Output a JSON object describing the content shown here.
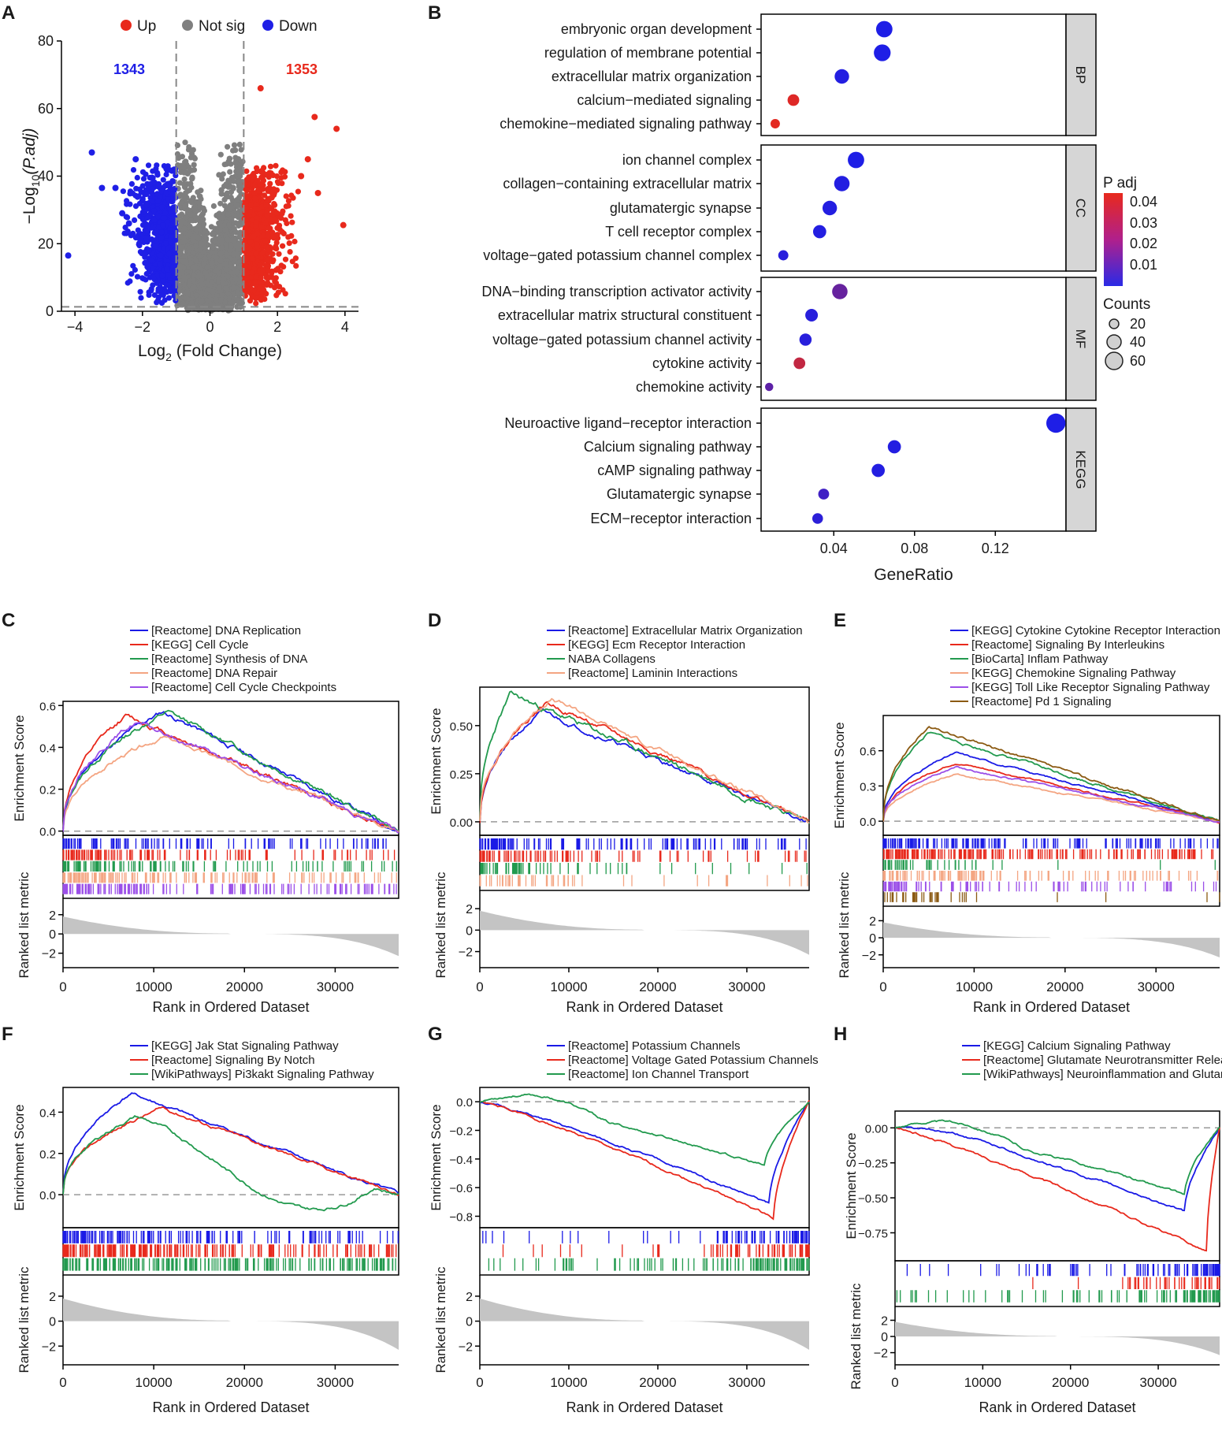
{
  "figure": {
    "panel_labels": [
      "A",
      "B",
      "C",
      "D",
      "E",
      "F",
      "G",
      "H"
    ],
    "colors": {
      "up": "#e8291c",
      "down": "#1f1fe6",
      "notsig": "#7f7f7f",
      "grid_gray": "#d3d3d3",
      "gsea": [
        "#1a1ae6",
        "#e8291c",
        "#229a4e",
        "#f4a582",
        "#9b4fe8",
        "#8b5a12"
      ]
    }
  },
  "chart_data": [
    {
      "id": "A",
      "type": "scatter",
      "title": "",
      "xlabel_main": "Log",
      "xlabel_sub": "2",
      "xlabel_rest": " (Fold Change)",
      "ylabel_main": "−Log",
      "ylabel_sub": "10",
      "ylabel_rest": "(P.adj)",
      "xlim": [
        -4.4,
        4.4
      ],
      "ylim": [
        0,
        80
      ],
      "xticks": [
        -4,
        -2,
        0,
        2,
        4
      ],
      "yticks": [
        0,
        20,
        40,
        60,
        80
      ],
      "fc_threshold": [
        -1,
        1
      ],
      "p_threshold_y": 1.3,
      "legend": [
        "Up",
        "Not sig",
        "Down"
      ],
      "counts": {
        "down": "1343",
        "up": "1353"
      },
      "highlight_points": [
        {
          "x": -4.2,
          "y": 16.5,
          "group": "down"
        },
        {
          "x": -3.5,
          "y": 47,
          "group": "down"
        },
        {
          "x": -3.2,
          "y": 36.5,
          "group": "down"
        },
        {
          "x": -2.8,
          "y": 36.5,
          "group": "down"
        },
        {
          "x": -2.6,
          "y": 29,
          "group": "down"
        },
        {
          "x": -2.4,
          "y": 26,
          "group": "down"
        },
        {
          "x": -2.2,
          "y": 45,
          "group": "down"
        },
        {
          "x": 1.5,
          "y": 66,
          "group": "up"
        },
        {
          "x": 3.1,
          "y": 57.5,
          "group": "up"
        },
        {
          "x": 3.75,
          "y": 54,
          "group": "up"
        },
        {
          "x": 3.95,
          "y": 25.5,
          "group": "up"
        },
        {
          "x": 2.9,
          "y": 45,
          "group": "up"
        },
        {
          "x": 2.7,
          "y": 40,
          "group": "up"
        },
        {
          "x": 3.2,
          "y": 35,
          "group": "up"
        }
      ]
    },
    {
      "id": "B",
      "type": "scatter",
      "xlabel": "GeneRatio",
      "xlim": [
        0.004,
        0.155
      ],
      "xticks": [
        0.04,
        0.08,
        0.12
      ],
      "xtick_labels": [
        "0.04",
        "0.08",
        "0.12"
      ],
      "legend_color_title": "P adj",
      "legend_color_ticks": [
        "0.04",
        "0.03",
        "0.02",
        "0.01"
      ],
      "legend_size_title": "Counts",
      "legend_size_ticks": [
        "20",
        "40",
        "60"
      ],
      "facets": [
        {
          "name": "BP",
          "terms": [
            {
              "term": "embryonic organ development",
              "ratio": 0.065,
              "count": 55,
              "padj": 0.002
            },
            {
              "term": "regulation of membrane potential",
              "ratio": 0.064,
              "count": 57,
              "padj": 0.002
            },
            {
              "term": "extracellular matrix organization",
              "ratio": 0.044,
              "count": 45,
              "padj": 0.003
            },
            {
              "term": "calcium−mediated signaling",
              "ratio": 0.02,
              "count": 30,
              "padj": 0.042
            },
            {
              "term": "chemokine−mediated signaling pathway",
              "ratio": 0.011,
              "count": 18,
              "padj": 0.043
            }
          ]
        },
        {
          "name": "CC",
          "terms": [
            {
              "term": "ion channel complex",
              "ratio": 0.051,
              "count": 55,
              "padj": 0.002
            },
            {
              "term": "collagen−containing extracellular matrix",
              "ratio": 0.044,
              "count": 50,
              "padj": 0.003
            },
            {
              "term": "glutamatergic synapse",
              "ratio": 0.038,
              "count": 45,
              "padj": 0.003
            },
            {
              "term": "T cell receptor complex",
              "ratio": 0.033,
              "count": 38,
              "padj": 0.003
            },
            {
              "term": "voltage−gated potassium channel complex",
              "ratio": 0.015,
              "count": 22,
              "padj": 0.004
            }
          ]
        },
        {
          "name": "MF",
          "terms": [
            {
              "term": "DNA−binding transcription activator activity",
              "ratio": 0.043,
              "count": 50,
              "padj": 0.017
            },
            {
              "term": "extracellular matrix structural constituent",
              "ratio": 0.029,
              "count": 35,
              "padj": 0.004
            },
            {
              "term": "voltage−gated potassium channel activity",
              "ratio": 0.026,
              "count": 33,
              "padj": 0.004
            },
            {
              "term": "cytokine activity",
              "ratio": 0.023,
              "count": 30,
              "padj": 0.036
            },
            {
              "term": "chemokine activity",
              "ratio": 0.008,
              "count": 12,
              "padj": 0.015
            }
          ]
        },
        {
          "name": "KEGG",
          "terms": [
            {
              "term": "Neuroactive ligand−receptor interaction",
              "ratio": 0.15,
              "count": 70,
              "padj": 0.002
            },
            {
              "term": "Calcium signaling pathway",
              "ratio": 0.07,
              "count": 38,
              "padj": 0.003
            },
            {
              "term": "cAMP signaling pathway",
              "ratio": 0.062,
              "count": 38,
              "padj": 0.003
            },
            {
              "term": "Glutamatergic synapse",
              "ratio": 0.035,
              "count": 26,
              "padj": 0.009
            },
            {
              "term": "ECM−receptor interaction",
              "ratio": 0.032,
              "count": 25,
              "padj": 0.005
            }
          ]
        }
      ]
    },
    {
      "id": "C",
      "type": "line",
      "ylabel_top": "Enrichment Score",
      "ylabel_bottom": "Ranked list metric",
      "xlabel": "Rank in Ordered Dataset",
      "xlim": [
        0,
        37000
      ],
      "xticks": [
        0,
        10000,
        20000,
        30000
      ],
      "ylim": [
        -0.02,
        0.62
      ],
      "yticks": [
        0.0,
        0.2,
        0.4,
        0.6
      ],
      "ytick_labels": [
        "0.0",
        "0.2",
        "0.4",
        "0.6"
      ],
      "metric_ticks": [
        "2",
        "0",
        "−2"
      ],
      "series": [
        {
          "name": "[Reactome] DNA Replication",
          "color": 0,
          "peak": 0.57,
          "peakRank": 11000,
          "shape": "pos",
          "jag": 0.03,
          "seed": 11,
          "density": 0.6
        },
        {
          "name": "[KEGG] Cell Cycle",
          "color": 1,
          "peak": 0.55,
          "peakRank": 7000,
          "shape": "pos",
          "jag": 0.03,
          "seed": 12,
          "density": 0.6
        },
        {
          "name": "[Reactome] Synthesis of DNA",
          "color": 2,
          "peak": 0.57,
          "peakRank": 11500,
          "shape": "pos",
          "jag": 0.03,
          "seed": 13,
          "density": 0.55
        },
        {
          "name": "[Reactome] DNA Repair",
          "color": 3,
          "peak": 0.45,
          "peakRank": 11000,
          "shape": "pos",
          "jag": 0.025,
          "seed": 14,
          "density": 0.75
        },
        {
          "name": "[Reactome] Cell Cycle Checkpoints",
          "color": 4,
          "peak": 0.52,
          "peakRank": 8000,
          "shape": "pos",
          "jag": 0.03,
          "seed": 15,
          "density": 0.75
        }
      ]
    },
    {
      "id": "D",
      "type": "line",
      "ylabel_top": "Enrichment Score",
      "ylabel_bottom": "Ranked list metric",
      "xlabel": "Rank in Ordered Dataset",
      "xlim": [
        0,
        37000
      ],
      "xticks": [
        0,
        10000,
        20000,
        30000
      ],
      "ylim": [
        -0.07,
        0.7
      ],
      "yticks": [
        0.0,
        0.25,
        0.5
      ],
      "ytick_labels": [
        "0.00",
        "0.25",
        "0.50"
      ],
      "metric_ticks": [
        "2",
        "0",
        "−2"
      ],
      "series": [
        {
          "name": "[Reactome] Extracellular Matrix Organization",
          "color": 0,
          "peak": 0.57,
          "peakRank": 7000,
          "shape": "pos",
          "jag": 0.03,
          "seed": 21,
          "density": 0.7
        },
        {
          "name": "[KEGG] Ecm Receptor Interaction",
          "color": 1,
          "peak": 0.62,
          "peakRank": 7500,
          "shape": "pos",
          "jag": 0.03,
          "seed": 22,
          "density": 0.5
        },
        {
          "name": "NABA Collagens",
          "color": 2,
          "peak": 0.66,
          "peakRank": 3500,
          "shape": "pos",
          "jag": 0.04,
          "seed": 23,
          "density": 0.3
        },
        {
          "name": "[Reactome] Laminin Interactions",
          "color": 3,
          "peak": 0.64,
          "peakRank": 8000,
          "shape": "pos",
          "jag": 0.03,
          "seed": 24,
          "density": 0.2
        }
      ]
    },
    {
      "id": "E",
      "type": "line",
      "ylabel_top": "Enrichment Score",
      "ylabel_bottom": "Ranked list metric",
      "xlabel": "Rank in Ordered Dataset",
      "xlim": [
        0,
        37000
      ],
      "xticks": [
        0,
        10000,
        20000,
        30000
      ],
      "ylim": [
        -0.12,
        0.9
      ],
      "yticks": [
        0.0,
        0.3,
        0.6
      ],
      "ytick_labels": [
        "0.0",
        "0.3",
        "0.6"
      ],
      "metric_ticks": [
        "2",
        "0",
        "−2"
      ],
      "series": [
        {
          "name": "[KEGG] Cytokine Cytokine Receptor Interaction",
          "color": 0,
          "peak": 0.58,
          "peakRank": 8000,
          "shape": "pos",
          "jag": 0.02,
          "seed": 31,
          "density": 0.8
        },
        {
          "name": "[Reactome] Signaling By Interleukins",
          "color": 1,
          "peak": 0.5,
          "peakRank": 8000,
          "shape": "pos",
          "jag": 0.02,
          "seed": 32,
          "density": 0.95
        },
        {
          "name": "[BioCarta] Inflam Pathway",
          "color": 2,
          "peak": 0.75,
          "peakRank": 5000,
          "shape": "pos",
          "jag": 0.03,
          "seed": 33,
          "density": 0.15
        },
        {
          "name": "[KEGG] Chemokine Signaling Pathway",
          "color": 3,
          "peak": 0.4,
          "peakRank": 8000,
          "shape": "pos",
          "jag": 0.02,
          "seed": 34,
          "density": 0.6
        },
        {
          "name": "[KEGG] Toll Like Receptor Signaling Pathway",
          "color": 4,
          "peak": 0.46,
          "peakRank": 8000,
          "shape": "pos",
          "jag": 0.02,
          "seed": 35,
          "density": 0.5
        },
        {
          "name": "[Reactome] Pd 1 Signaling",
          "color": 5,
          "peak": 0.8,
          "peakRank": 5000,
          "shape": "pos",
          "jag": 0.03,
          "seed": 36,
          "density": 0.08
        }
      ]
    },
    {
      "id": "F",
      "type": "line",
      "ylabel_top": "Enrichment Score",
      "ylabel_bottom": "Ranked list metric",
      "xlabel": "Rank in Ordered Dataset",
      "xlim": [
        0,
        37000
      ],
      "xticks": [
        0,
        10000,
        20000,
        30000
      ],
      "ylim": [
        -0.16,
        0.52
      ],
      "yticks": [
        0.0,
        0.2,
        0.4
      ],
      "ytick_labels": [
        "0.0",
        "0.2",
        "0.4"
      ],
      "metric_ticks": [
        "2",
        "0",
        "−2"
      ],
      "series": [
        {
          "name": "[KEGG] Jak Stat Signaling Pathway",
          "color": 0,
          "peak": 0.49,
          "peakRank": 7500,
          "shape": "pos",
          "jag": 0.02,
          "seed": 41,
          "density": 0.7
        },
        {
          "name": "[Reactome] Signaling By Notch",
          "color": 1,
          "peak": 0.42,
          "peakRank": 11000,
          "shape": "pos",
          "jag": 0.02,
          "seed": 42,
          "density": 0.95
        },
        {
          "name": "[WikiPathways] Pi3kakt Signaling Pathway",
          "color": 2,
          "peak": 0.38,
          "peakRank": 8000,
          "shape": "posdip",
          "jag": 0.02,
          "seed": 43,
          "density": 0.95
        }
      ]
    },
    {
      "id": "G",
      "type": "line",
      "ylabel_top": "Enrichment Score",
      "ylabel_bottom": "Ranked list metric",
      "xlabel": "Rank in Ordered Dataset",
      "xlim": [
        0,
        37000
      ],
      "xticks": [
        0,
        10000,
        20000,
        30000
      ],
      "ylim": [
        -0.88,
        0.1
      ],
      "yticks": [
        0.0,
        -0.2,
        -0.4,
        -0.6,
        -0.8
      ],
      "ytick_labels": [
        "0.0",
        "−0.2",
        "−0.4",
        "−0.6",
        "−0.8"
      ],
      "metric_ticks": [
        "2",
        "0",
        "−2"
      ],
      "series": [
        {
          "name": "[Reactome] Potassium Channels",
          "color": 0,
          "peak": -0.71,
          "peakRank": 32500,
          "shape": "neg",
          "jag": 0.02,
          "seed": 51,
          "density": 0.3
        },
        {
          "name": "[Reactome] Voltage Gated Potassium Channels",
          "color": 1,
          "peak": -0.81,
          "peakRank": 33000,
          "shape": "neg",
          "jag": 0.02,
          "seed": 52,
          "density": 0.25
        },
        {
          "name": "[Reactome] Ion Channel Transport",
          "color": 2,
          "peak": -0.45,
          "peakRank": 32000,
          "shape": "negbump",
          "jag": 0.02,
          "seed": 53,
          "density": 0.6
        }
      ]
    },
    {
      "id": "H",
      "type": "line",
      "ylabel_top": "Enrichment Score",
      "ylabel_bottom": "Ranked list metric",
      "xlabel": "Rank in Ordered Dataset",
      "xlim": [
        0,
        37000
      ],
      "xticks": [
        0,
        10000,
        20000,
        30000
      ],
      "ylim": [
        -0.95,
        0.12
      ],
      "yticks": [
        0.0,
        -0.25,
        -0.5,
        -0.75
      ],
      "ytick_labels": [
        "0.00",
        "−0.25",
        "−0.50",
        "−0.75"
      ],
      "metric_ticks": [
        "2",
        "0",
        "−2"
      ],
      "series": [
        {
          "name": "[KEGG] Calcium Signaling Pathway",
          "color": 0,
          "peak": -0.6,
          "peakRank": 33000,
          "shape": "negflat",
          "jag": 0.02,
          "seed": 61,
          "density": 0.5
        },
        {
          "name": "[Reactome] Glutamate Neurotransmitter Release Cycle",
          "color": 1,
          "peak": -0.88,
          "peakRank": 35500,
          "shape": "neg",
          "jag": 0.02,
          "seed": 62,
          "density": 0.08
        },
        {
          "name": "[WikiPathways] Neuroinflammation and Glutamatergic Signaling",
          "color": 2,
          "peak": -0.48,
          "peakRank": 33000,
          "shape": "negbump",
          "jag": 0.02,
          "seed": 63,
          "density": 0.45
        }
      ]
    }
  ]
}
